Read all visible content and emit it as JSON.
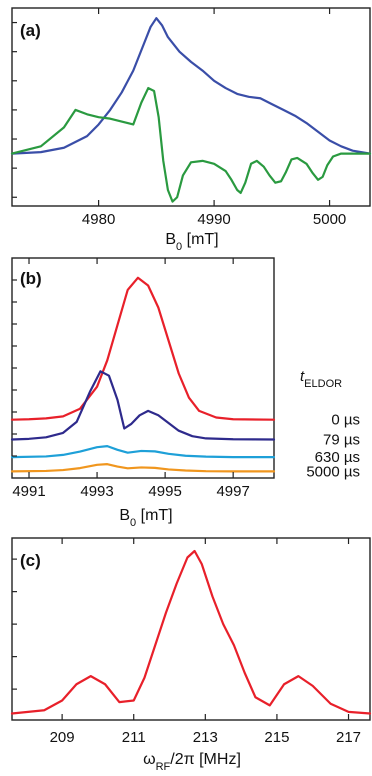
{
  "chart_data": [
    {
      "type": "line",
      "panel_label": "(a)",
      "xlabel": "B",
      "xlabel_sub": "0",
      "xlabel_unit": " [mT]",
      "xlim": [
        4972.5,
        5003.5
      ],
      "ylim": [
        -0.36,
        1.0
      ],
      "xticks": [
        4980,
        4990,
        5000
      ],
      "xtick_labels": [
        "4980",
        "4990",
        "5000"
      ],
      "yticks": [
        -0.3,
        -0.1,
        0.1,
        0.3,
        0.5,
        0.7,
        0.9
      ],
      "series": [
        {
          "color": "#3a4ea8",
          "x": [
            4972.5,
            4975,
            4977,
            4979,
            4980,
            4981,
            4982,
            4983,
            4984,
            4984.5,
            4985,
            4985.5,
            4986,
            4987,
            4988,
            4989,
            4990,
            4991,
            4992,
            4993,
            4994,
            4995,
            4996,
            4997,
            4998,
            4999,
            5000,
            5001,
            5002,
            5003.5
          ],
          "y": [
            0.0,
            0.01,
            0.04,
            0.12,
            0.2,
            0.3,
            0.42,
            0.57,
            0.77,
            0.87,
            0.93,
            0.88,
            0.8,
            0.7,
            0.63,
            0.57,
            0.5,
            0.45,
            0.41,
            0.39,
            0.38,
            0.34,
            0.3,
            0.26,
            0.21,
            0.15,
            0.09,
            0.05,
            0.02,
            0.0
          ]
        },
        {
          "color": "#2a9a40",
          "x": [
            4972.5,
            4975,
            4977,
            4978,
            4979,
            4980,
            4981,
            4982,
            4983,
            4983.7,
            4984.3,
            4984.8,
            4985.2,
            4985.6,
            4986,
            4986.4,
            4986.8,
            4987.3,
            4988,
            4989,
            4990,
            4991,
            4991.5,
            4992,
            4992.3,
            4992.7,
            4993.2,
            4993.7,
            4994.3,
            4994.8,
            4995.3,
            4995.8,
            4996.2,
            4996.7,
            4997.2,
            4998,
            4998.5,
            4999,
            4999.4,
            4999.8,
            5000.3,
            5001,
            5002,
            5003.5
          ],
          "y": [
            0.0,
            0.05,
            0.18,
            0.3,
            0.27,
            0.25,
            0.24,
            0.22,
            0.2,
            0.35,
            0.45,
            0.43,
            0.25,
            -0.05,
            -0.25,
            -0.33,
            -0.3,
            -0.15,
            -0.06,
            -0.05,
            -0.07,
            -0.12,
            -0.18,
            -0.25,
            -0.27,
            -0.2,
            -0.07,
            -0.05,
            -0.09,
            -0.15,
            -0.2,
            -0.19,
            -0.13,
            -0.04,
            -0.03,
            -0.07,
            -0.13,
            -0.18,
            -0.16,
            -0.08,
            -0.02,
            0.0,
            0.0,
            0.0
          ]
        }
      ]
    },
    {
      "type": "line",
      "panel_label": "(b)",
      "xlabel": "B",
      "xlabel_sub": "0",
      "xlabel_unit": " [mT]",
      "xlim": [
        4990.5,
        4998.2
      ],
      "ylim": [
        0,
        10
      ],
      "xticks": [
        4991,
        4993,
        4995,
        4997
      ],
      "xtick_labels": [
        "4991",
        "4993",
        "4995",
        "4997"
      ],
      "yticks": [
        1.0,
        2.0,
        3.0,
        4.0,
        5.0,
        6.0,
        7.0,
        8.0,
        9.0
      ],
      "legend_title": "t",
      "legend_title_sub": "ELDOR",
      "legend_placement": "right",
      "series": [
        {
          "name": "0 µs",
          "color": "#e8202a",
          "baseline": 2.65,
          "x": [
            4990.5,
            4991,
            4991.5,
            4992,
            4992.5,
            4993,
            4993.3,
            4993.6,
            4993.9,
            4994.2,
            4994.5,
            4994.8,
            4995.1,
            4995.4,
            4995.7,
            4996,
            4996.5,
            4997,
            4998.2
          ],
          "y": [
            0.0,
            0.02,
            0.06,
            0.15,
            0.5,
            1.5,
            2.7,
            4.3,
            5.9,
            6.45,
            6.1,
            5.1,
            3.6,
            2.1,
            1.0,
            0.4,
            0.1,
            0.02,
            0.0
          ]
        },
        {
          "name": "79 µs",
          "color": "#2e2a8c",
          "baseline": 1.75,
          "x": [
            4990.5,
            4991,
            4991.5,
            4992,
            4992.4,
            4992.8,
            4993.1,
            4993.35,
            4993.6,
            4993.8,
            4994,
            4994.25,
            4994.5,
            4994.8,
            4995.1,
            4995.4,
            4995.8,
            4996.2,
            4997,
            4998.2
          ],
          "y": [
            0.0,
            0.03,
            0.1,
            0.3,
            0.8,
            2.2,
            3.1,
            2.9,
            1.8,
            0.5,
            0.7,
            1.1,
            1.3,
            1.1,
            0.75,
            0.4,
            0.15,
            0.05,
            0.01,
            0.0
          ]
        },
        {
          "name": "630 µs",
          "color": "#1ea0d8",
          "baseline": 0.95,
          "x": [
            4990.5,
            4991.5,
            4992,
            4992.5,
            4993,
            4993.3,
            4993.6,
            4993.9,
            4994.3,
            4994.7,
            4995.1,
            4995.6,
            4996.2,
            4997,
            4998.2
          ],
          "y": [
            0.0,
            0.03,
            0.1,
            0.25,
            0.45,
            0.5,
            0.33,
            0.2,
            0.28,
            0.26,
            0.15,
            0.06,
            0.02,
            0.0,
            0.0
          ]
        },
        {
          "name": "5000 µs",
          "color": "#f0961e",
          "baseline": 0.3,
          "x": [
            4990.5,
            4991.5,
            4992,
            4992.5,
            4993,
            4993.3,
            4993.6,
            4993.9,
            4994.3,
            4994.7,
            4995.1,
            4995.6,
            4996.2,
            4997,
            4998.2
          ],
          "y": [
            0.0,
            0.02,
            0.06,
            0.15,
            0.3,
            0.33,
            0.22,
            0.14,
            0.18,
            0.16,
            0.09,
            0.04,
            0.01,
            0.0,
            0.0
          ]
        }
      ]
    },
    {
      "type": "line",
      "panel_label": "(c)",
      "xlabel": "ω",
      "xlabel_sub": "RF",
      "xlabel_unit": "/2π [MHz]",
      "xlim": [
        207.6,
        217.6
      ],
      "ylim": [
        -0.04,
        1.08
      ],
      "xticks": [
        209,
        211,
        213,
        215,
        217
      ],
      "xtick_labels": [
        "209",
        "211",
        "213",
        "215",
        "217"
      ],
      "yticks": [
        0.15,
        0.35,
        0.55,
        0.75,
        0.95
      ],
      "series": [
        {
          "color": "#e8202a",
          "x": [
            207.6,
            208.5,
            209,
            209.4,
            209.8,
            210.2,
            210.6,
            211,
            211.3,
            211.6,
            211.9,
            212.2,
            212.5,
            212.7,
            212.9,
            213.2,
            213.5,
            213.8,
            214.1,
            214.4,
            214.8,
            215.2,
            215.6,
            216,
            216.5,
            217,
            217.6
          ],
          "y": [
            0.0,
            0.02,
            0.08,
            0.18,
            0.23,
            0.18,
            0.07,
            0.08,
            0.22,
            0.42,
            0.62,
            0.8,
            0.96,
            1.0,
            0.92,
            0.72,
            0.55,
            0.42,
            0.25,
            0.1,
            0.05,
            0.18,
            0.23,
            0.17,
            0.06,
            0.01,
            0.0
          ]
        }
      ]
    }
  ]
}
